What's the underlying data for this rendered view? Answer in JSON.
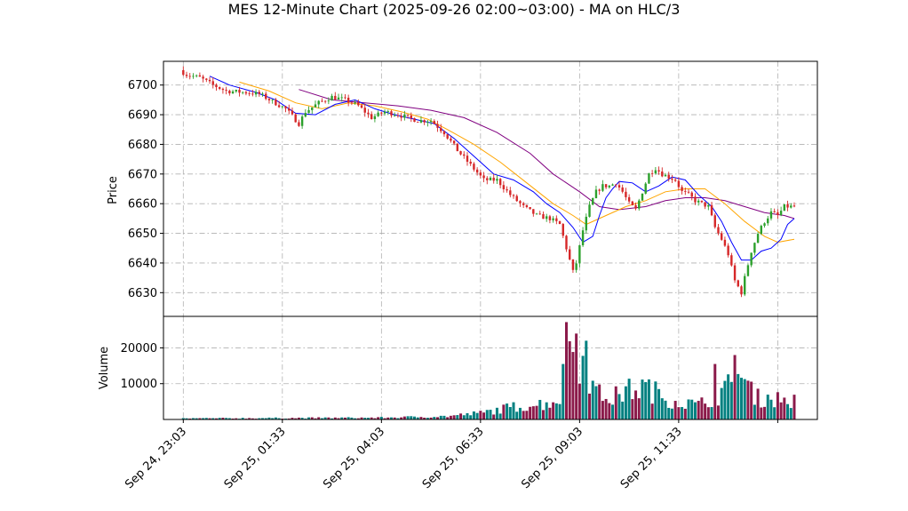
{
  "chart_data": {
    "type": "candlestick",
    "title": "MES 12-Minute Chart (2025-09-26 02:00~03:00) - MA on HLC/3",
    "price_panel": {
      "ylabel": "Price",
      "ylim": [
        6622,
        6708
      ],
      "yticks": [
        6630,
        6640,
        6650,
        6660,
        6670,
        6680,
        6690,
        6700
      ],
      "grid": true
    },
    "volume_panel": {
      "ylabel": "Volume",
      "ylim": [
        0,
        28800
      ],
      "yticks": [
        10000,
        20000
      ],
      "grid": true
    },
    "x_axis": {
      "xlim": [
        -6,
        192
      ],
      "tick_positions": [
        0,
        30,
        60,
        90,
        120,
        150,
        180
      ],
      "tick_labels": [
        "Sep 24, 23:03",
        "Sep 25, 01:33",
        "Sep 25, 04:03",
        "Sep 25, 06:33",
        "Sep 25, 09:03",
        "Sep 25, 11:33",
        ""
      ]
    },
    "colors": {
      "up": "#2ca02c",
      "down": "#d62728",
      "vol_up": "#008080",
      "vol_down": "#8b1a4a",
      "ma_fast": "#0000ff",
      "ma_mid": "#ffa500",
      "ma_slow": "#800080"
    },
    "price_anchors": [
      [
        0,
        6705
      ],
      [
        2,
        6703.5
      ],
      [
        6,
        6702.5
      ],
      [
        10,
        6700
      ],
      [
        14,
        6698
      ],
      [
        20,
        6697.5
      ],
      [
        24,
        6697
      ],
      [
        28,
        6694.5
      ],
      [
        32,
        6692
      ],
      [
        36,
        6687
      ],
      [
        38,
        6691
      ],
      [
        42,
        6694
      ],
      [
        46,
        6696
      ],
      [
        50,
        6695
      ],
      [
        54,
        6693
      ],
      [
        58,
        6689
      ],
      [
        62,
        6691
      ],
      [
        66,
        6690
      ],
      [
        72,
        6688
      ],
      [
        76,
        6688
      ],
      [
        80,
        6684
      ],
      [
        84,
        6678
      ],
      [
        88,
        6673
      ],
      [
        92,
        6668
      ],
      [
        96,
        6668
      ],
      [
        100,
        6663
      ],
      [
        104,
        6659
      ],
      [
        108,
        6656
      ],
      [
        112,
        6655
      ],
      [
        115,
        6653
      ],
      [
        117,
        6645
      ],
      [
        119,
        6637
      ],
      [
        120,
        6640
      ],
      [
        122,
        6651
      ],
      [
        124,
        6659
      ],
      [
        126,
        6664
      ],
      [
        128,
        6666
      ],
      [
        130,
        6666
      ],
      [
        132,
        6667
      ],
      [
        134,
        6664
      ],
      [
        136,
        6660
      ],
      [
        138,
        6658
      ],
      [
        140,
        6664
      ],
      [
        142,
        6670
      ],
      [
        144,
        6672
      ],
      [
        146,
        6670
      ],
      [
        148,
        6669
      ],
      [
        150,
        6668
      ],
      [
        152,
        6664
      ],
      [
        154,
        6663
      ],
      [
        156,
        6661
      ],
      [
        158,
        6660
      ],
      [
        160,
        6659
      ],
      [
        162,
        6652
      ],
      [
        164,
        6648
      ],
      [
        166,
        6643
      ],
      [
        168,
        6634
      ],
      [
        170,
        6630
      ],
      [
        171,
        6635
      ],
      [
        173,
        6644
      ],
      [
        175,
        6650
      ],
      [
        177,
        6654
      ],
      [
        179,
        6657
      ],
      [
        181,
        6656
      ],
      [
        183,
        6659
      ],
      [
        185,
        6659
      ]
    ],
    "volume_anchors": [
      [
        0,
        300
      ],
      [
        60,
        500
      ],
      [
        80,
        900
      ],
      [
        90,
        1800
      ],
      [
        100,
        3500
      ],
      [
        110,
        4500
      ],
      [
        114,
        6000
      ],
      [
        116,
        17000
      ],
      [
        118,
        20000
      ],
      [
        120,
        18000
      ],
      [
        122,
        14000
      ],
      [
        124,
        9000
      ],
      [
        126,
        7000
      ],
      [
        130,
        6000
      ],
      [
        134,
        8000
      ],
      [
        140,
        9000
      ],
      [
        146,
        6000
      ],
      [
        150,
        5000
      ],
      [
        156,
        4000
      ],
      [
        160,
        6000
      ],
      [
        164,
        8000
      ],
      [
        166,
        10000
      ],
      [
        168,
        13000
      ],
      [
        170,
        10000
      ],
      [
        174,
        6000
      ],
      [
        178,
        6000
      ],
      [
        185,
        5000
      ]
    ],
    "ma_fast_points": [
      [
        8,
        6703
      ],
      [
        14,
        6700
      ],
      [
        22,
        6697.5
      ],
      [
        28,
        6695
      ],
      [
        34,
        6690.5
      ],
      [
        40,
        6690
      ],
      [
        46,
        6693.5
      ],
      [
        52,
        6695
      ],
      [
        58,
        6692
      ],
      [
        64,
        6690
      ],
      [
        70,
        6688.5
      ],
      [
        76,
        6687
      ],
      [
        82,
        6682
      ],
      [
        88,
        6676
      ],
      [
        94,
        6670
      ],
      [
        100,
        6668
      ],
      [
        106,
        6664
      ],
      [
        110,
        6660
      ],
      [
        114,
        6657
      ],
      [
        118,
        6652
      ],
      [
        121,
        6647
      ],
      [
        124,
        6649
      ],
      [
        126,
        6656
      ],
      [
        128,
        6662
      ],
      [
        130,
        6665
      ],
      [
        132,
        6667.5
      ],
      [
        136,
        6667
      ],
      [
        140,
        6664
      ],
      [
        144,
        6666
      ],
      [
        148,
        6669
      ],
      [
        152,
        6668
      ],
      [
        156,
        6663
      ],
      [
        160,
        6659
      ],
      [
        163,
        6654
      ],
      [
        166,
        6647
      ],
      [
        169,
        6641
      ],
      [
        172,
        6641
      ],
      [
        175,
        6644
      ],
      [
        178,
        6645
      ],
      [
        181,
        6648
      ],
      [
        183,
        6653
      ],
      [
        185,
        6655
      ]
    ],
    "ma_mid_points": [
      [
        17,
        6701
      ],
      [
        26,
        6698
      ],
      [
        34,
        6694
      ],
      [
        42,
        6692
      ],
      [
        50,
        6694
      ],
      [
        58,
        6693
      ],
      [
        66,
        6691
      ],
      [
        74,
        6688.5
      ],
      [
        80,
        6685
      ],
      [
        88,
        6680
      ],
      [
        96,
        6674
      ],
      [
        104,
        6667
      ],
      [
        112,
        6660
      ],
      [
        118,
        6656
      ],
      [
        122,
        6653
      ],
      [
        128,
        6656
      ],
      [
        134,
        6659
      ],
      [
        140,
        6661
      ],
      [
        146,
        6664
      ],
      [
        152,
        6665
      ],
      [
        158,
        6665
      ],
      [
        164,
        6660
      ],
      [
        170,
        6654
      ],
      [
        176,
        6649
      ],
      [
        180,
        6647
      ],
      [
        185,
        6648
      ]
    ],
    "ma_slow_points": [
      [
        35,
        6698.5
      ],
      [
        45,
        6695
      ],
      [
        55,
        6694
      ],
      [
        65,
        6693
      ],
      [
        75,
        6691.5
      ],
      [
        85,
        6689
      ],
      [
        95,
        6684
      ],
      [
        105,
        6677
      ],
      [
        112,
        6670
      ],
      [
        120,
        6664
      ],
      [
        126,
        6659
      ],
      [
        132,
        6658
      ],
      [
        140,
        6659
      ],
      [
        146,
        6661
      ],
      [
        152,
        6662
      ],
      [
        158,
        6662
      ],
      [
        164,
        6661
      ],
      [
        170,
        6659
      ],
      [
        176,
        6657
      ],
      [
        182,
        6656
      ],
      [
        185,
        6655
      ]
    ]
  }
}
